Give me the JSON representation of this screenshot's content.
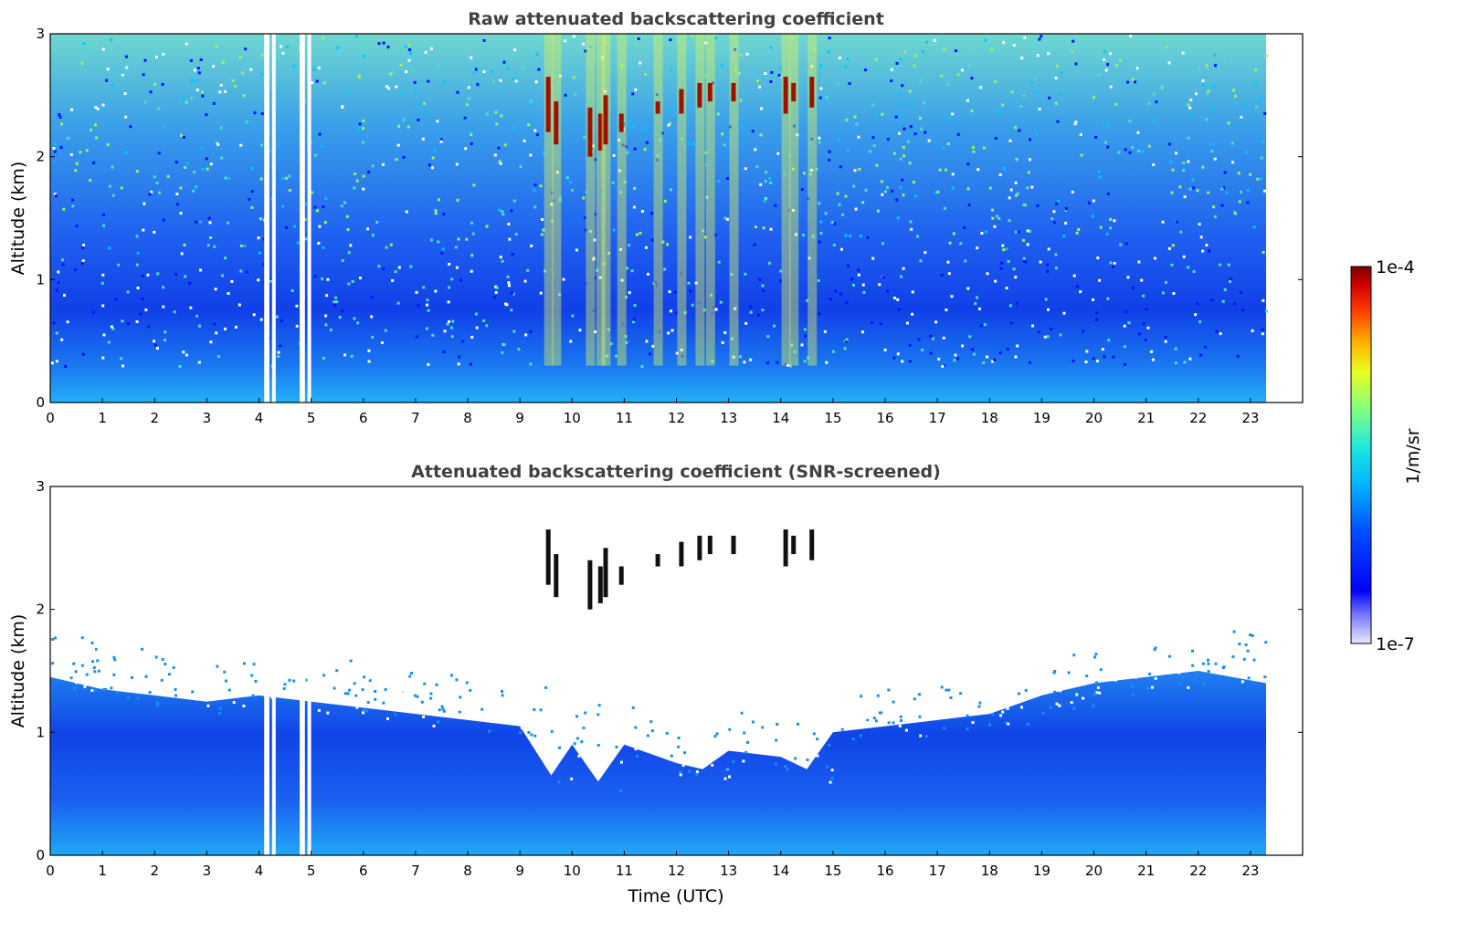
{
  "chart_data": [
    {
      "type": "heatmap",
      "title": "Raw attenuated backscattering coefficient",
      "xlabel": "",
      "ylabel": "Altitude (km)",
      "x_ticks": [
        "0",
        "1",
        "2",
        "3",
        "4",
        "5",
        "6",
        "7",
        "8",
        "9",
        "10",
        "11",
        "12",
        "13",
        "14",
        "15",
        "16",
        "17",
        "18",
        "19",
        "20",
        "21",
        "22",
        "23"
      ],
      "y_ticks": [
        "0",
        "1",
        "2",
        "3"
      ],
      "xlim": [
        0,
        24
      ],
      "ylim": [
        0,
        3
      ],
      "data_extent_hours": [
        0,
        23.3
      ],
      "gaps_hours": [
        [
          4.1,
          4.2
        ],
        [
          4.25,
          4.32
        ],
        [
          4.78,
          4.88
        ],
        [
          4.93,
          5.0
        ]
      ],
      "cloud_patches": [
        {
          "t": 9.5,
          "alt": [
            2.2,
            2.65
          ]
        },
        {
          "t": 9.65,
          "alt": [
            2.1,
            2.45
          ]
        },
        {
          "t": 10.3,
          "alt": [
            2.0,
            2.4
          ]
        },
        {
          "t": 10.5,
          "alt": [
            2.05,
            2.35
          ]
        },
        {
          "t": 10.6,
          "alt": [
            2.1,
            2.5
          ]
        },
        {
          "t": 10.9,
          "alt": [
            2.2,
            2.35
          ]
        },
        {
          "t": 11.6,
          "alt": [
            2.35,
            2.45
          ]
        },
        {
          "t": 12.05,
          "alt": [
            2.35,
            2.55
          ]
        },
        {
          "t": 12.4,
          "alt": [
            2.4,
            2.6
          ]
        },
        {
          "t": 12.6,
          "alt": [
            2.45,
            2.6
          ]
        },
        {
          "t": 13.05,
          "alt": [
            2.45,
            2.6
          ]
        },
        {
          "t": 14.05,
          "alt": [
            2.35,
            2.65
          ]
        },
        {
          "t": 14.2,
          "alt": [
            2.45,
            2.6
          ]
        },
        {
          "t": 14.55,
          "alt": [
            2.4,
            2.65
          ]
        }
      ]
    },
    {
      "type": "heatmap",
      "title": "Attenuated backscattering coefficient (SNR-screened)",
      "xlabel": "Time (UTC)",
      "ylabel": "Altitude (km)",
      "x_ticks": [
        "0",
        "1",
        "2",
        "3",
        "4",
        "5",
        "6",
        "7",
        "8",
        "9",
        "10",
        "11",
        "12",
        "13",
        "14",
        "15",
        "16",
        "17",
        "18",
        "19",
        "20",
        "21",
        "22",
        "23"
      ],
      "y_ticks": [
        "0",
        "1",
        "2",
        "3"
      ],
      "xlim": [
        0,
        24
      ],
      "ylim": [
        0,
        3
      ],
      "data_extent_hours": [
        0,
        23.3
      ],
      "gaps_hours": [
        [
          4.1,
          4.2
        ],
        [
          4.25,
          4.32
        ],
        [
          4.78,
          4.88
        ],
        [
          4.93,
          5.0
        ]
      ],
      "screened_top_km": [
        [
          0,
          1.45
        ],
        [
          1,
          1.35
        ],
        [
          2,
          1.3
        ],
        [
          3,
          1.25
        ],
        [
          4,
          1.3
        ],
        [
          5,
          1.25
        ],
        [
          6,
          1.2
        ],
        [
          7,
          1.15
        ],
        [
          8,
          1.1
        ],
        [
          9,
          1.05
        ],
        [
          9.6,
          0.65
        ],
        [
          10,
          0.9
        ],
        [
          10.5,
          0.6
        ],
        [
          11,
          0.9
        ],
        [
          12,
          0.75
        ],
        [
          12.5,
          0.7
        ],
        [
          13,
          0.85
        ],
        [
          14,
          0.8
        ],
        [
          14.5,
          0.7
        ],
        [
          15,
          1.0
        ],
        [
          16,
          1.05
        ],
        [
          17,
          1.1
        ],
        [
          18,
          1.15
        ],
        [
          19,
          1.3
        ],
        [
          20,
          1.4
        ],
        [
          21,
          1.45
        ],
        [
          22,
          1.5
        ],
        [
          23.3,
          1.4
        ]
      ]
    }
  ],
  "colorbar": {
    "label": "1/m/sr",
    "max_label": "1e-4",
    "min_label": "1e-7",
    "scale": "log",
    "colormap": "jet"
  },
  "colors": {
    "text": "#000000",
    "title": "#404040",
    "frame": "#000000"
  }
}
